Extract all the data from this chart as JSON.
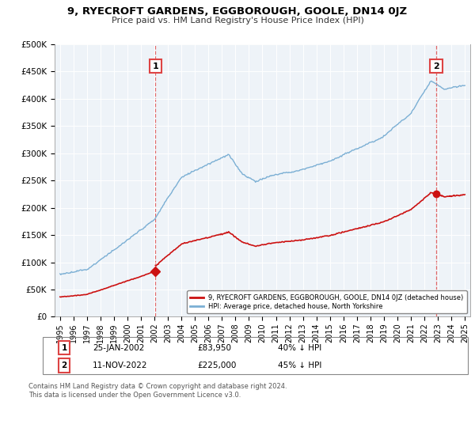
{
  "title": "9, RYECROFT GARDENS, EGGBOROUGH, GOOLE, DN14 0JZ",
  "subtitle": "Price paid vs. HM Land Registry's House Price Index (HPI)",
  "ylim": [
    0,
    500000
  ],
  "yticks": [
    0,
    50000,
    100000,
    150000,
    200000,
    250000,
    300000,
    350000,
    400000,
    450000,
    500000
  ],
  "ytick_labels": [
    "£0",
    "£50K",
    "£100K",
    "£150K",
    "£200K",
    "£250K",
    "£300K",
    "£350K",
    "£400K",
    "£450K",
    "£500K"
  ],
  "hpi_color": "#7bafd4",
  "sold_color": "#cc1111",
  "vline_color": "#dd4444",
  "background_color": "#ffffff",
  "plot_bg_color": "#eef3f8",
  "grid_color": "#ffffff",
  "sale1_x": 2002.07,
  "sale1_y": 83950,
  "sale2_x": 2022.87,
  "sale2_y": 225000,
  "legend_line1": "9, RYECROFT GARDENS, EGGBOROUGH, GOOLE, DN14 0JZ (detached house)",
  "legend_line2": "HPI: Average price, detached house, North Yorkshire",
  "sale1_date": "25-JAN-2002",
  "sale1_price": "£83,950",
  "sale1_note": "40% ↓ HPI",
  "sale2_date": "11-NOV-2022",
  "sale2_price": "£225,000",
  "sale2_note": "45% ↓ HPI",
  "footer": "Contains HM Land Registry data © Crown copyright and database right 2024.\nThis data is licensed under the Open Government Licence v3.0.",
  "xlim_start": 1994.6,
  "xlim_end": 2025.4
}
